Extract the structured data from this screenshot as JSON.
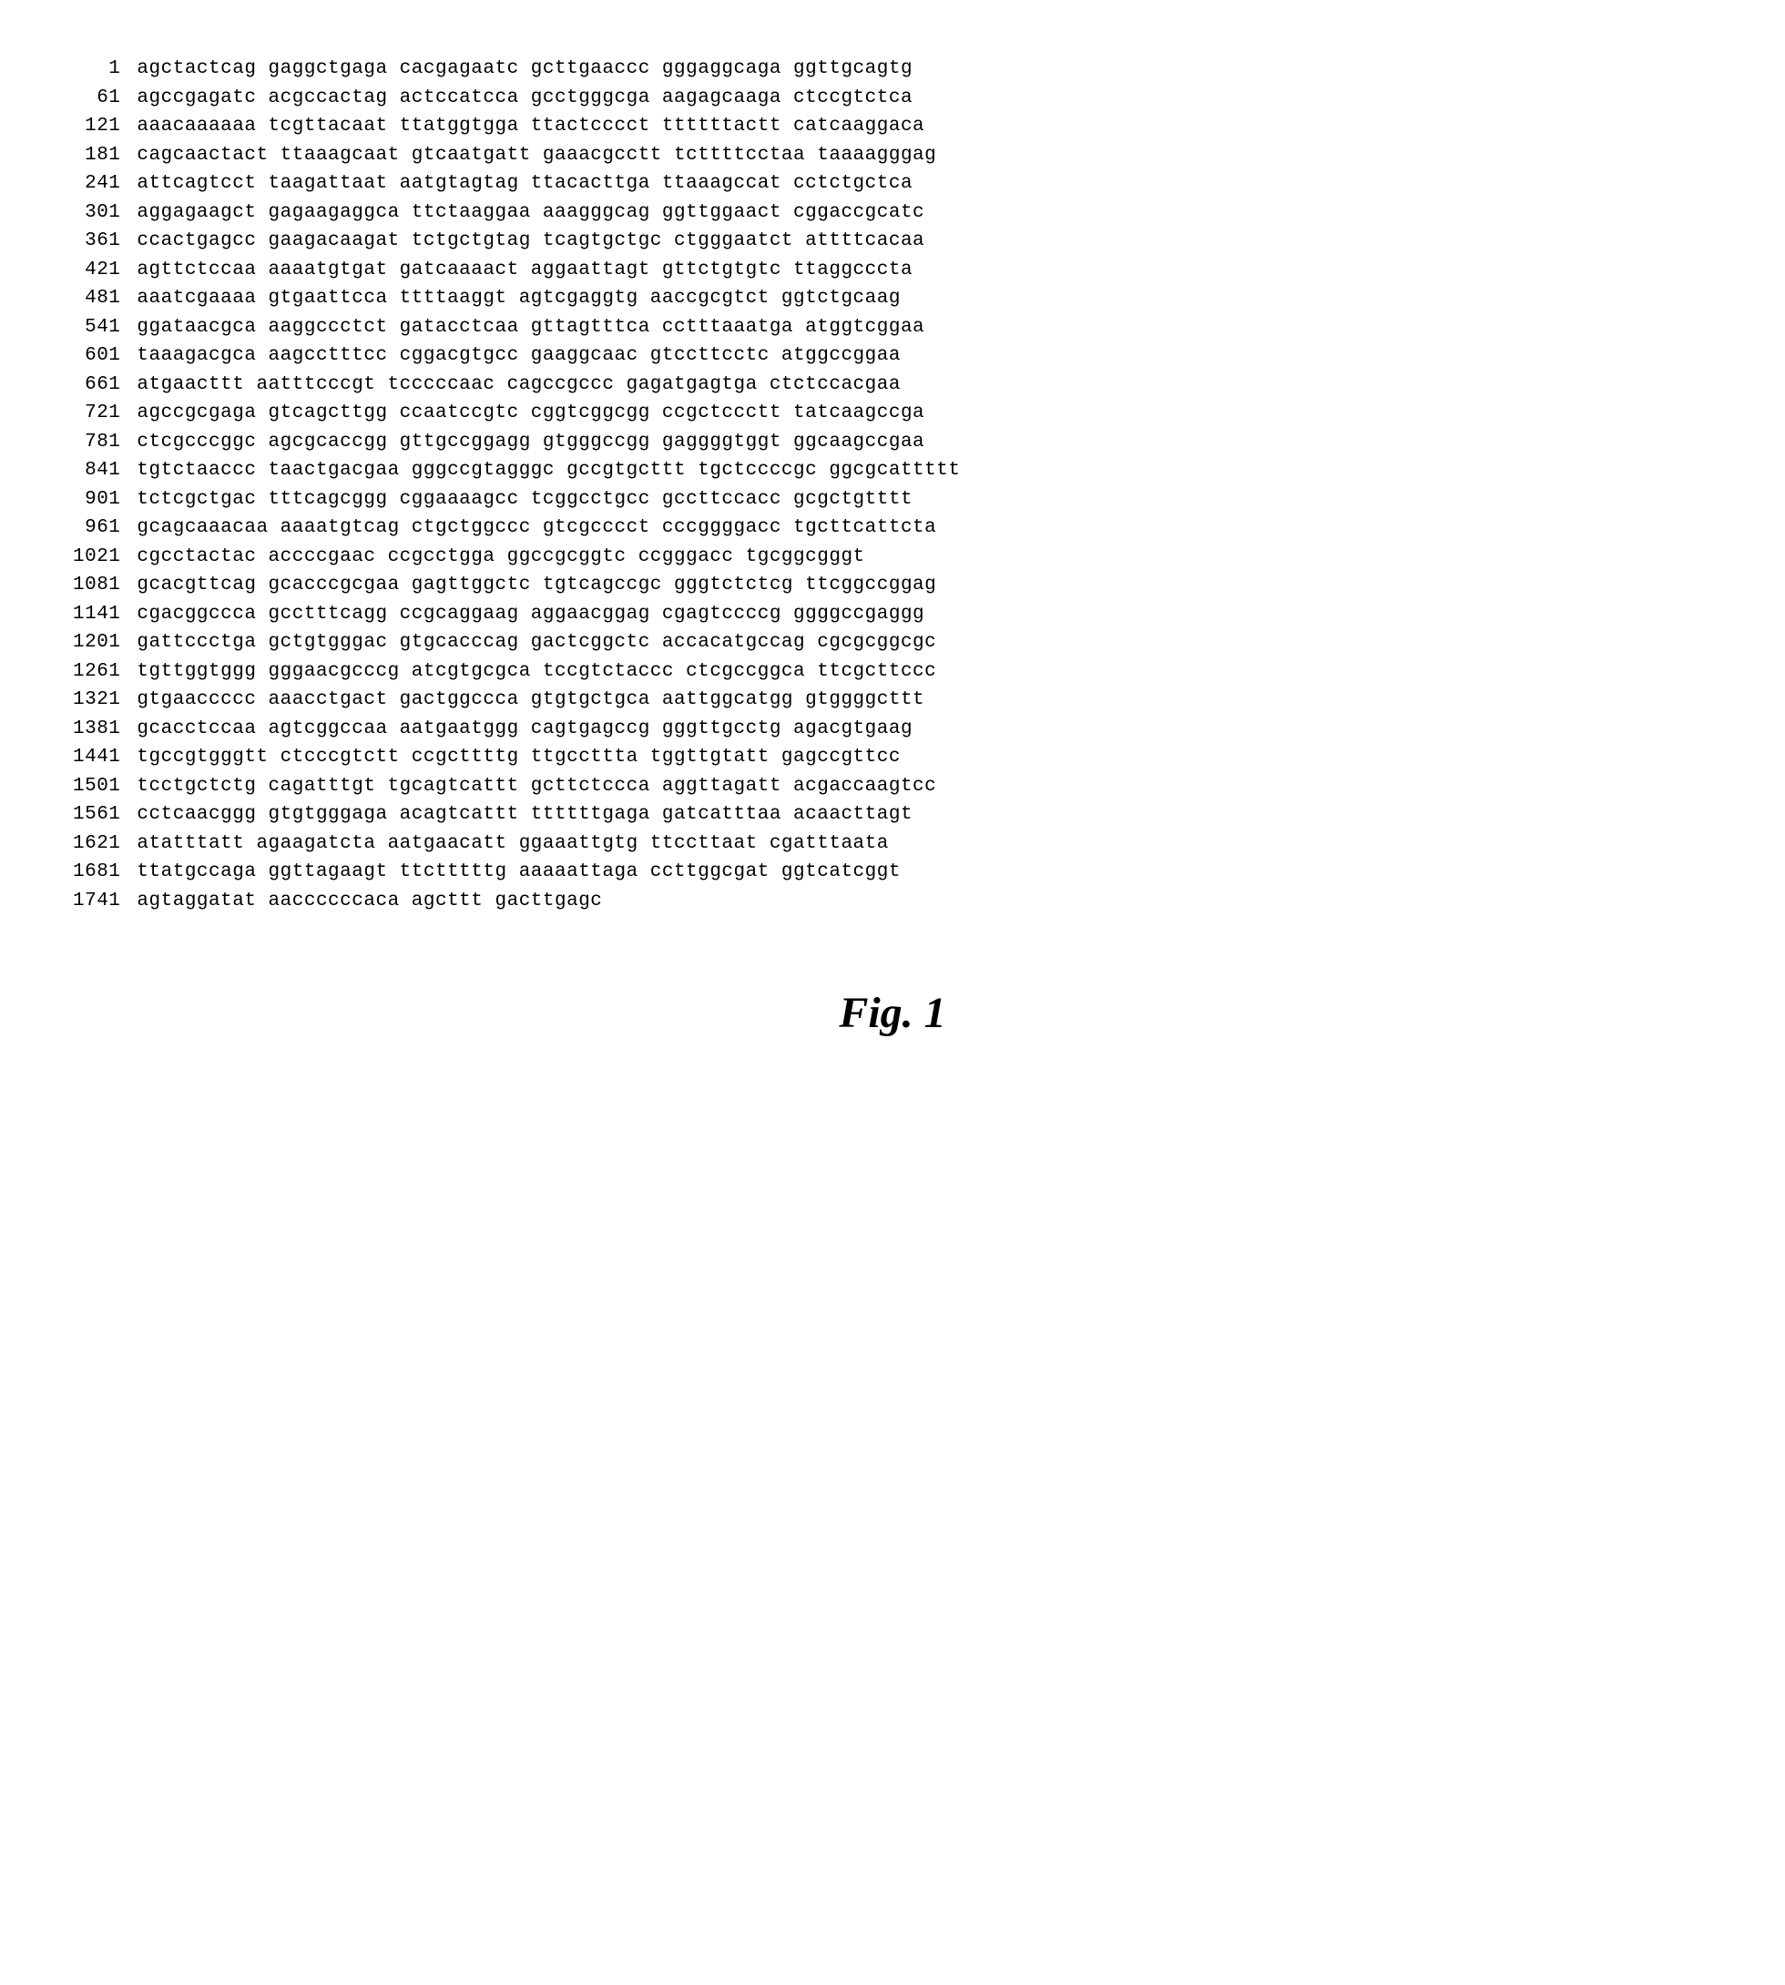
{
  "sequence_figure": {
    "type": "sequence-listing",
    "font_family": "Courier New",
    "font_size_pt": 16,
    "text_color": "#000000",
    "background_color": "#ffffff",
    "block_spacing_chars": 1,
    "blocks_per_row": 6,
    "block_length": 10,
    "position_col_width_chars": 4,
    "rows": [
      {
        "pos": 1,
        "blocks": [
          "agctactcag",
          "gaggctgaga",
          "cacgagaatc",
          "gcttgaaccc",
          "gggaggcaga",
          "ggttgcagtg"
        ]
      },
      {
        "pos": 61,
        "blocks": [
          "agccgagatc",
          "acgccactag",
          "actccatcca",
          "gcctgggcga",
          "aagagcaaga",
          "ctccgtctca"
        ]
      },
      {
        "pos": 121,
        "blocks": [
          "aaacaaaaaa",
          "tcgttacaat",
          "ttatggtgga",
          "ttactcccct",
          "ttttttactt",
          "catcaaggaca"
        ]
      },
      {
        "pos": 181,
        "blocks": [
          "cagcaactact",
          "ttaaagcaat",
          "gtcaatgatt",
          "gaaacgcctt",
          "tcttttcctaa",
          "taaaagggag"
        ]
      },
      {
        "pos": 241,
        "blocks": [
          "attcagtcct",
          "taagattaat",
          "aatgtagtag",
          "ttacacttga",
          "ttaaagccat",
          "cctctgctca"
        ]
      },
      {
        "pos": 301,
        "blocks": [
          "aggagaagct",
          "gagaagaggca",
          "ttctaaggaa",
          "aaagggcag",
          "ggttggaact",
          "cggaccgcatc"
        ]
      },
      {
        "pos": 361,
        "blocks": [
          "ccactgagcc",
          "gaagacaagat",
          "tctgctgtag",
          "tcagtgctgc",
          "ctgggaatct",
          "attttcacaa"
        ]
      },
      {
        "pos": 421,
        "blocks": [
          "agttctccaa",
          "aaaatgtgat",
          "gatcaaaact",
          "aggaattagt",
          "gttctgtgtc",
          "ttaggcccta"
        ]
      },
      {
        "pos": 481,
        "blocks": [
          "aaatcgaaaa",
          "gtgaattcca",
          "ttttaaggt",
          "agtcgaggtg",
          "aaccgcgtct",
          "ggtctgcaag"
        ]
      },
      {
        "pos": 541,
        "blocks": [
          "ggataacgca",
          "aaggccctct",
          "gatacctcaa",
          "gttagtttca",
          "cctttaaatga",
          "atggtcggaa"
        ]
      },
      {
        "pos": 601,
        "blocks": [
          "taaagacgca",
          "aagcctttcc",
          "cggacgtgcc",
          "gaaggcaac",
          "gtccttcctc",
          "atggccggaa"
        ]
      },
      {
        "pos": 661,
        "blocks": [
          "atgaacttt",
          "aatttcccgt",
          "tcccccaac",
          "cagccgccc",
          "gagatgagtga",
          "ctctccacgaa"
        ]
      },
      {
        "pos": 721,
        "blocks": [
          "agccgcgaga",
          "gtcagcttgg",
          "ccaatccgtc",
          "cggtcggcgg",
          "ccgctccctt",
          "tatcaagccga"
        ]
      },
      {
        "pos": 781,
        "blocks": [
          "ctcgcccggc",
          "agcgcaccgg",
          "gttgccggagg",
          "gtgggccgg",
          "gaggggtggt",
          "ggcaagccgaa"
        ]
      },
      {
        "pos": 841,
        "blocks": [
          "tgtctaaccc",
          "taactgacgaa",
          "gggccgtagggc",
          "gccgtgcttt",
          "tgctccccgc",
          "ggcgcattttt"
        ]
      },
      {
        "pos": 901,
        "blocks": [
          "tctcgctgac",
          "tttcagcggg",
          "cggaaaagcc",
          "tcggcctgcc",
          "gccttccacc",
          "gcgctgtttt"
        ]
      },
      {
        "pos": 961,
        "blocks": [
          "gcagcaaacaa",
          "aaaatgtcag",
          "ctgctggccc",
          "gtcgcccct",
          "cccggggacc",
          "tgcttcattcta"
        ]
      },
      {
        "pos": 1021,
        "blocks": [
          "cgcctactac",
          "accccgaac",
          "ccgcctgga",
          "ggccgcggtc",
          "ccgggacc",
          "tgcggcgggt"
        ]
      },
      {
        "pos": 1081,
        "blocks": [
          "gcacgttcag",
          "gcacccgcgaa",
          "gagttggctc",
          "tgtcagccgc",
          "gggtctctcg",
          "ttcggccggag"
        ]
      },
      {
        "pos": 1141,
        "blocks": [
          "cgacggccca",
          "gcctttcagg",
          "ccgcaggaag",
          "aggaacggag",
          "cgagtccccg",
          "ggggccgaggg"
        ]
      },
      {
        "pos": 1201,
        "blocks": [
          "gattccctga",
          "gctgtgggac",
          "gtgcacccag",
          "gactcggctc",
          "accacatgccag",
          "cgcgcggcgc"
        ]
      },
      {
        "pos": 1261,
        "blocks": [
          "tgttggtggg",
          "gggaacgcccg",
          "atcgtgcgca",
          "tccgtctaccc",
          "ctcgccggca",
          "ttcgcttccc"
        ]
      },
      {
        "pos": 1321,
        "blocks": [
          "gtgaaccccc",
          "aaacctgact",
          "gactggccca",
          "gtgtgctgca",
          "aattggcatgg",
          "gtggggcttt"
        ]
      },
      {
        "pos": 1381,
        "blocks": [
          "gcacctccaa",
          "agtcggccaa",
          "aatgaatggg",
          "cagtgagccg",
          "gggttgcctg",
          "agacgtgaag"
        ]
      },
      {
        "pos": 1441,
        "blocks": [
          "tgccgtgggtt",
          "ctcccgtctt",
          "ccgcttttg",
          "ttgccttta",
          "tggttgtatt",
          "gagccgttcc"
        ]
      },
      {
        "pos": 1501,
        "blocks": [
          "tcctgctctg",
          "cagatttgt",
          "tgcagtcattt",
          "gcttctccca",
          "aggttagatt",
          "acgaccaagtcc"
        ]
      },
      {
        "pos": 1561,
        "blocks": [
          "cctcaacggg",
          "gtgtgggaga",
          "acagtcattt",
          "ttttttgaga",
          "gatcatttaa",
          "acaacttagt"
        ]
      },
      {
        "pos": 1621,
        "blocks": [
          "atatttatt",
          "agaagatcta",
          "aatgaacatt",
          "ggaaattgtg",
          "ttccttaat",
          "cgatttaata"
        ]
      },
      {
        "pos": 1681,
        "blocks": [
          "ttatgccaga",
          "ggttagaagt",
          "ttctttttg",
          "aaaaattaga",
          "ccttggcgat",
          "ggtcatcggt"
        ]
      },
      {
        "pos": 1741,
        "blocks": [
          "agtaggatat",
          "aaccccccaca",
          "agcttt",
          "",
          "",
          "gacttgagc"
        ]
      }
    ],
    "caption": "Fig. 1",
    "caption_font_family": "Times New Roman",
    "caption_font_style": "italic",
    "caption_font_weight": "bold",
    "caption_font_size_pt": 36
  }
}
